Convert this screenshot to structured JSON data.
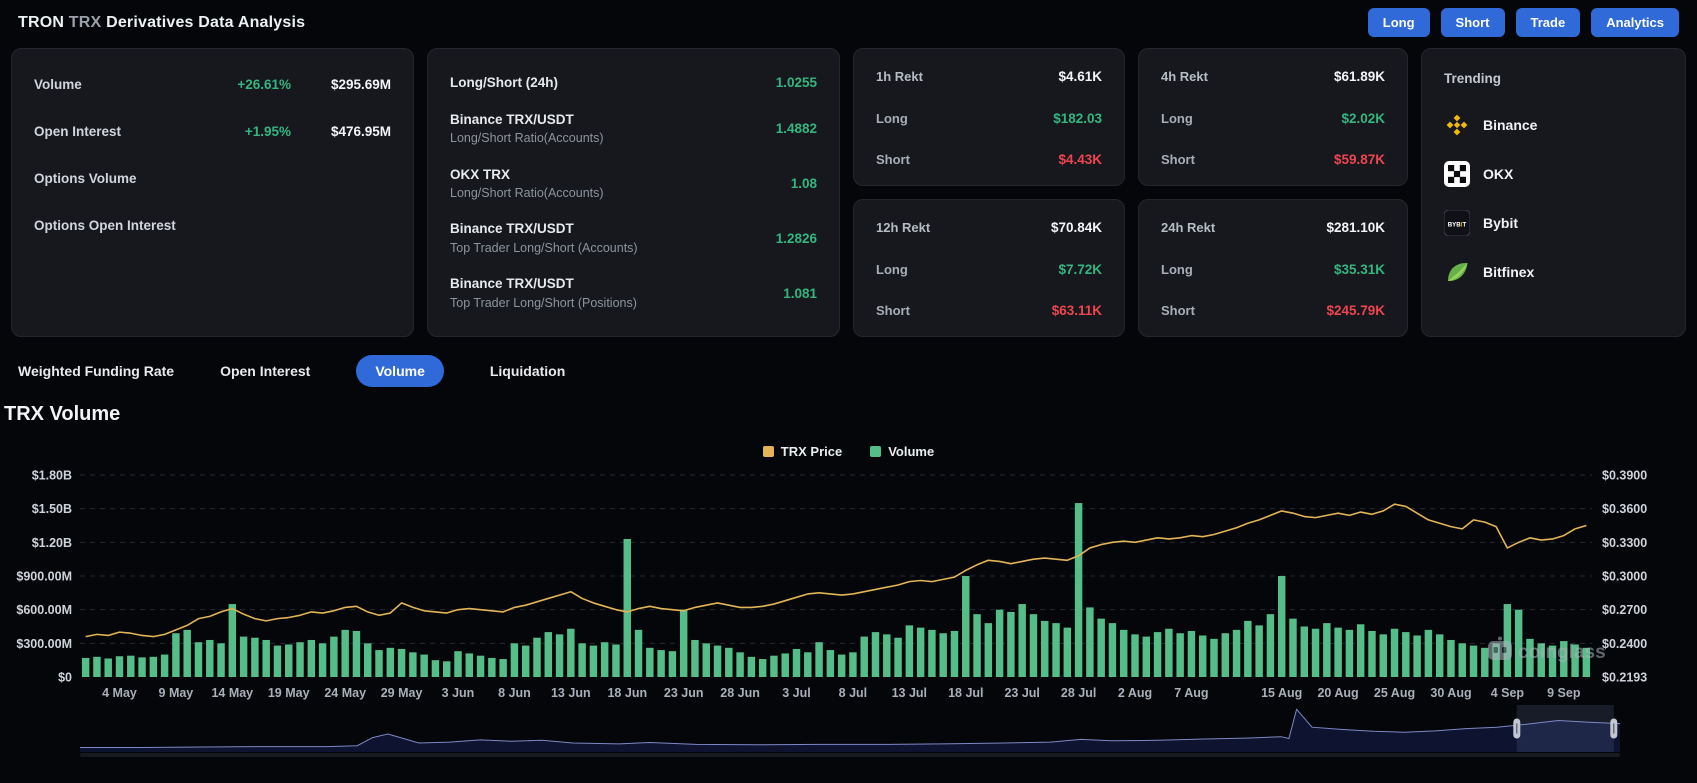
{
  "header": {
    "title1": "TRON",
    "title2": "TRX",
    "title3": "Derivatives Data Analysis",
    "buttons": [
      "Long",
      "Short",
      "Trade",
      "Analytics"
    ]
  },
  "stats": {
    "market": {
      "rows": [
        {
          "label": "Volume",
          "pct": "+26.61%",
          "value": "$295.69M"
        },
        {
          "label": "Open Interest",
          "pct": "+1.95%",
          "value": "$476.95M"
        },
        {
          "label": "Options Volume",
          "pct": "",
          "value": ""
        },
        {
          "label": "Options Open Interest",
          "pct": "",
          "value": ""
        }
      ]
    },
    "ratios": {
      "rows": [
        {
          "label": "Long/Short (24h)",
          "sub": "",
          "value": "1.0255"
        },
        {
          "label": "Binance TRX/USDT",
          "sub": "Long/Short Ratio(Accounts)",
          "value": "1.4882"
        },
        {
          "label": "OKX TRX",
          "sub": "Long/Short Ratio(Accounts)",
          "value": "1.08"
        },
        {
          "label": "Binance TRX/USDT",
          "sub": "Top Trader Long/Short (Accounts)",
          "value": "1.2826"
        },
        {
          "label": "Binance TRX/USDT",
          "sub": "Top Trader Long/Short (Positions)",
          "value": "1.081"
        }
      ]
    },
    "rekt": [
      {
        "period": "1h Rekt",
        "total": "$4.61K",
        "long_label": "Long",
        "long": "$182.03",
        "short_label": "Short",
        "short": "$4.43K"
      },
      {
        "period": "4h Rekt",
        "total": "$61.89K",
        "long_label": "Long",
        "long": "$2.02K",
        "short_label": "Short",
        "short": "$59.87K"
      },
      {
        "period": "12h Rekt",
        "total": "$70.84K",
        "long_label": "Long",
        "long": "$7.72K",
        "short_label": "Short",
        "short": "$63.11K"
      },
      {
        "period": "24h Rekt",
        "total": "$281.10K",
        "long_label": "Long",
        "long": "$35.31K",
        "short_label": "Short",
        "short": "$245.79K"
      }
    ],
    "trending": {
      "title": "Trending",
      "items": [
        {
          "name": "Binance",
          "icon": "binance-icon"
        },
        {
          "name": "OKX",
          "icon": "okx-icon"
        },
        {
          "name": "Bybit",
          "icon": "bybit-icon"
        },
        {
          "name": "Bitfinex",
          "icon": "bitfinex-icon"
        }
      ]
    }
  },
  "tabs": [
    {
      "label": "Weighted Funding Rate",
      "active": false
    },
    {
      "label": "Open Interest",
      "active": false
    },
    {
      "label": "Volume",
      "active": true
    },
    {
      "label": "Liquidation",
      "active": false
    }
  ],
  "section_title": "TRX Volume",
  "watermark": "coinglass",
  "chart_data": {
    "type": "bar",
    "title": "TRX Volume",
    "legend": [
      {
        "label": "TRX Price",
        "color": "#e2b457"
      },
      {
        "label": "Volume",
        "color": "#55bd88"
      }
    ],
    "theme": {
      "bar_green": "#55bd88",
      "line_yellow": "#e2b457",
      "grid": "#262a31",
      "y_label": "#ced3da",
      "x_label": "#a9b0b9",
      "nav_fill": "#0e1430",
      "nav_line": "#7d88c4",
      "accent_blue": "#2f6ad8",
      "green": "#35b57f",
      "red": "#ee4550"
    },
    "left_axis": {
      "ticks": [
        {
          "label": "$1.80B",
          "value": 1800
        },
        {
          "label": "$1.50B",
          "value": 1500
        },
        {
          "label": "$1.20B",
          "value": 1200
        },
        {
          "label": "$900.00M",
          "value": 900
        },
        {
          "label": "$600.00M",
          "value": 600
        },
        {
          "label": "$300.00M",
          "value": 300
        },
        {
          "label": "$0",
          "value": 0
        }
      ],
      "max": 1800
    },
    "right_axis": {
      "ticks": [
        {
          "label": "$0.3900",
          "value": 0.39
        },
        {
          "label": "$0.3600",
          "value": 0.36
        },
        {
          "label": "$0.3300",
          "value": 0.33
        },
        {
          "label": "$0.3000",
          "value": 0.3
        },
        {
          "label": "$0.2700",
          "value": 0.27
        },
        {
          "label": "$0.2400",
          "value": 0.24
        }
      ],
      "bottom_label": "$0.2193",
      "step_per_grid": 0.03
    },
    "x_ticks": [
      {
        "label": "4 May",
        "index": 3
      },
      {
        "label": "9 May",
        "index": 8
      },
      {
        "label": "14 May",
        "index": 13
      },
      {
        "label": "19 May",
        "index": 18
      },
      {
        "label": "24 May",
        "index": 23
      },
      {
        "label": "29 May",
        "index": 28
      },
      {
        "label": "3 Jun",
        "index": 33
      },
      {
        "label": "8 Jun",
        "index": 38
      },
      {
        "label": "13 Jun",
        "index": 43
      },
      {
        "label": "18 Jun",
        "index": 48
      },
      {
        "label": "23 Jun",
        "index": 53
      },
      {
        "label": "28 Jun",
        "index": 58
      },
      {
        "label": "3 Jul",
        "index": 63
      },
      {
        "label": "8 Jul",
        "index": 68
      },
      {
        "label": "13 Jul",
        "index": 73
      },
      {
        "label": "18 Jul",
        "index": 78
      },
      {
        "label": "23 Jul",
        "index": 83
      },
      {
        "label": "28 Jul",
        "index": 88
      },
      {
        "label": "2 Aug",
        "index": 93
      },
      {
        "label": "7 Aug",
        "index": 98
      },
      {
        "label": "15 Aug",
        "index": 106
      },
      {
        "label": "20 Aug",
        "index": 111
      },
      {
        "label": "25 Aug",
        "index": 116
      },
      {
        "label": "30 Aug",
        "index": 121
      },
      {
        "label": "4 Sep",
        "index": 126
      },
      {
        "label": "9 Sep",
        "index": 131
      }
    ],
    "series": {
      "volume_musd": [
        170,
        180,
        165,
        185,
        190,
        175,
        180,
        200,
        390,
        420,
        310,
        330,
        300,
        650,
        360,
        350,
        330,
        280,
        290,
        310,
        330,
        300,
        360,
        420,
        410,
        300,
        240,
        260,
        250,
        220,
        200,
        150,
        140,
        230,
        210,
        190,
        170,
        160,
        300,
        280,
        350,
        400,
        380,
        430,
        300,
        280,
        310,
        290,
        1230,
        420,
        260,
        240,
        230,
        600,
        330,
        300,
        280,
        260,
        220,
        180,
        160,
        190,
        210,
        250,
        220,
        310,
        240,
        200,
        220,
        360,
        400,
        380,
        350,
        460,
        440,
        420,
        390,
        410,
        900,
        560,
        480,
        600,
        580,
        650,
        560,
        500,
        480,
        440,
        1550,
        620,
        520,
        480,
        420,
        380,
        360,
        400,
        430,
        390,
        410,
        370,
        340,
        390,
        420,
        500,
        460,
        560,
        900,
        520,
        450,
        430,
        480,
        440,
        420,
        470,
        410,
        380,
        430,
        400,
        370,
        420,
        380,
        330,
        300,
        280,
        260,
        300,
        650,
        600,
        340,
        300,
        280,
        320,
        290,
        260
      ],
      "price_usd": [
        0.246,
        0.248,
        0.247,
        0.25,
        0.249,
        0.247,
        0.246,
        0.248,
        0.252,
        0.256,
        0.262,
        0.264,
        0.268,
        0.271,
        0.266,
        0.262,
        0.26,
        0.262,
        0.263,
        0.265,
        0.268,
        0.267,
        0.269,
        0.272,
        0.273,
        0.268,
        0.265,
        0.267,
        0.276,
        0.272,
        0.269,
        0.268,
        0.267,
        0.27,
        0.271,
        0.27,
        0.269,
        0.268,
        0.272,
        0.274,
        0.277,
        0.28,
        0.283,
        0.286,
        0.28,
        0.276,
        0.273,
        0.27,
        0.268,
        0.271,
        0.273,
        0.271,
        0.27,
        0.269,
        0.272,
        0.274,
        0.276,
        0.274,
        0.272,
        0.272,
        0.273,
        0.275,
        0.278,
        0.281,
        0.284,
        0.285,
        0.284,
        0.283,
        0.284,
        0.286,
        0.288,
        0.29,
        0.292,
        0.295,
        0.296,
        0.295,
        0.297,
        0.299,
        0.305,
        0.31,
        0.314,
        0.313,
        0.311,
        0.313,
        0.315,
        0.316,
        0.315,
        0.314,
        0.318,
        0.325,
        0.328,
        0.33,
        0.331,
        0.33,
        0.332,
        0.334,
        0.333,
        0.334,
        0.336,
        0.335,
        0.337,
        0.34,
        0.343,
        0.347,
        0.35,
        0.354,
        0.358,
        0.356,
        0.353,
        0.352,
        0.354,
        0.356,
        0.354,
        0.357,
        0.355,
        0.358,
        0.364,
        0.362,
        0.356,
        0.35,
        0.347,
        0.344,
        0.342,
        0.35,
        0.348,
        0.344,
        0.325,
        0.33,
        0.334,
        0.332,
        0.333,
        0.336,
        0.342,
        0.345
      ]
    },
    "navigator": {
      "window": [
        0.933,
        0.996
      ],
      "points": [
        [
          0,
          0.1
        ],
        [
          0.04,
          0.1
        ],
        [
          0.08,
          0.11
        ],
        [
          0.12,
          0.12
        ],
        [
          0.16,
          0.12
        ],
        [
          0.18,
          0.14
        ],
        [
          0.19,
          0.32
        ],
        [
          0.2,
          0.4
        ],
        [
          0.21,
          0.3
        ],
        [
          0.22,
          0.2
        ],
        [
          0.24,
          0.22
        ],
        [
          0.26,
          0.27
        ],
        [
          0.28,
          0.24
        ],
        [
          0.3,
          0.26
        ],
        [
          0.32,
          0.2
        ],
        [
          0.35,
          0.18
        ],
        [
          0.37,
          0.21
        ],
        [
          0.4,
          0.17
        ],
        [
          0.44,
          0.16
        ],
        [
          0.48,
          0.17
        ],
        [
          0.52,
          0.17
        ],
        [
          0.56,
          0.18
        ],
        [
          0.6,
          0.2
        ],
        [
          0.63,
          0.22
        ],
        [
          0.65,
          0.28
        ],
        [
          0.67,
          0.25
        ],
        [
          0.7,
          0.26
        ],
        [
          0.73,
          0.29
        ],
        [
          0.76,
          0.31
        ],
        [
          0.78,
          0.34
        ],
        [
          0.785,
          0.3
        ],
        [
          0.79,
          0.95
        ],
        [
          0.8,
          0.55
        ],
        [
          0.82,
          0.5
        ],
        [
          0.84,
          0.46
        ],
        [
          0.86,
          0.44
        ],
        [
          0.88,
          0.47
        ],
        [
          0.9,
          0.52
        ],
        [
          0.92,
          0.55
        ],
        [
          0.94,
          0.62
        ],
        [
          0.96,
          0.7
        ],
        [
          0.98,
          0.66
        ],
        [
          1,
          0.63
        ]
      ]
    }
  }
}
